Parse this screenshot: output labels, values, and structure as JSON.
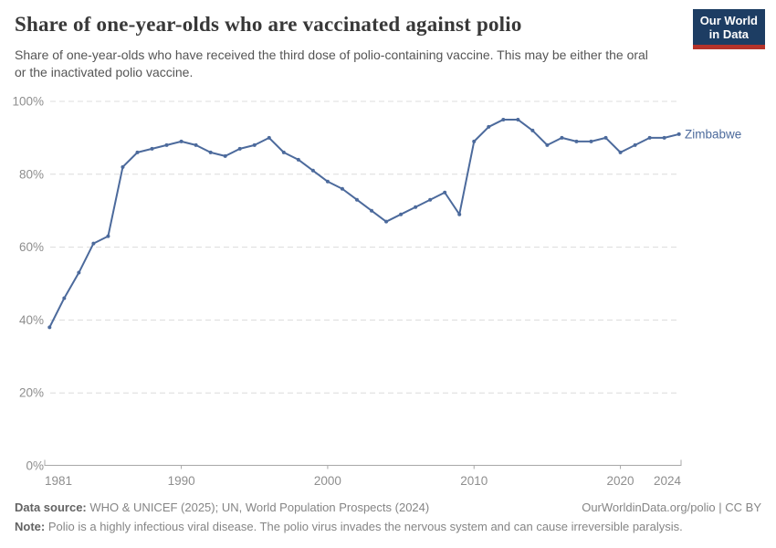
{
  "header": {
    "title": "Share of one-year-olds who are vaccinated against polio",
    "subtitle": "Share of one-year-olds who have received the third dose of polio-containing vaccine. This may be either the oral or the inactivated polio vaccine.",
    "logo": {
      "line1": "Our World",
      "line2": "in Data",
      "bg_color": "#1D3D63",
      "accent_color": "#B5332A"
    }
  },
  "chart_data": {
    "type": "line",
    "title": "Share of one-year-olds who are vaccinated against polio",
    "xlabel": "",
    "ylabel": "",
    "xlim": [
      1981,
      2024
    ],
    "ylim": [
      0,
      100
    ],
    "grid": "horizontal-dashed",
    "legend_position": "line-end-label",
    "x_ticks": [
      1981,
      1990,
      2000,
      2010,
      2020,
      2024
    ],
    "y_ticks": [
      0,
      20,
      40,
      60,
      80,
      100
    ],
    "y_tick_suffix": "%",
    "series": [
      {
        "name": "Zimbabwe",
        "color": "#4C6A9C",
        "x": [
          1981,
          1982,
          1983,
          1984,
          1985,
          1986,
          1987,
          1988,
          1989,
          1990,
          1991,
          1992,
          1993,
          1994,
          1995,
          1996,
          1997,
          1998,
          1999,
          2000,
          2001,
          2002,
          2003,
          2004,
          2005,
          2006,
          2007,
          2008,
          2009,
          2010,
          2011,
          2012,
          2013,
          2014,
          2015,
          2016,
          2017,
          2018,
          2019,
          2020,
          2021,
          2022,
          2023,
          2024
        ],
        "values": [
          38,
          46,
          53,
          61,
          63,
          82,
          86,
          87,
          88,
          89,
          88,
          86,
          85,
          87,
          88,
          90,
          86,
          84,
          81,
          78,
          76,
          73,
          70,
          67,
          69,
          71,
          73,
          75,
          69,
          89,
          93,
          95,
          95,
          92,
          88,
          90,
          89,
          89,
          90,
          86,
          88,
          90,
          90,
          91
        ]
      }
    ]
  },
  "footer": {
    "data_source_label": "Data source:",
    "data_source_value": "WHO & UNICEF (2025); UN, World Population Prospects (2024)",
    "link_text": "OurWorldinData.org/polio | CC BY",
    "note_label": "Note:",
    "note_value": "Polio is a highly infectious viral disease. The polio virus invades the nervous system and can cause irreversible paralysis."
  },
  "colors": {
    "line": "#4C6A9C",
    "gridline": "#DCDCDC",
    "axis": "#A8A8A8",
    "tick_label": "#8E8E8E",
    "title": "#383838",
    "subtitle": "#555555",
    "footer": "#858585"
  }
}
